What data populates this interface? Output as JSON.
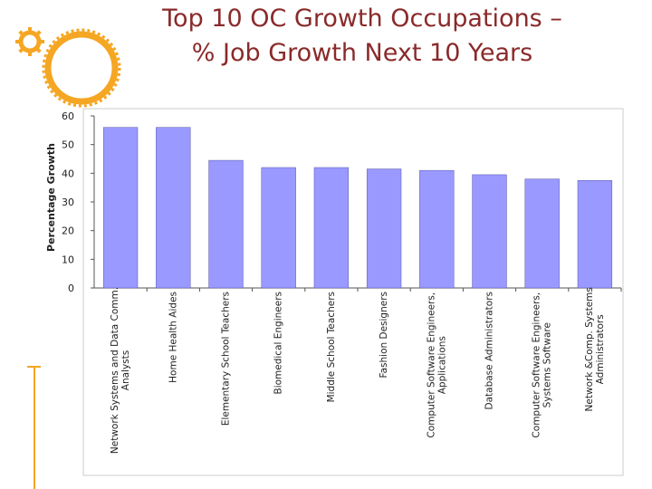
{
  "slide": {
    "title_line1": "Top 10 OC Growth Occupations –",
    "title_line2": "% Job Growth Next 10 Years",
    "accent_color": "#f5a623",
    "title_color": "#8a2a2a"
  },
  "chart_data": {
    "type": "bar",
    "ylabel": "Percentage Growth",
    "xlabel": "",
    "ylim": [
      0,
      60
    ],
    "yticks": [
      0,
      10,
      20,
      30,
      40,
      50,
      60
    ],
    "grid": false,
    "bar_color": "#9999ff",
    "categories": [
      [
        "Network Systems and Data Comm.",
        "Analysts"
      ],
      [
        "Home Health Aides"
      ],
      [
        "Elementary School Teachers"
      ],
      [
        "Biomedical Engineers"
      ],
      [
        "Middle School Teachers"
      ],
      [
        "Fashion Designers"
      ],
      [
        "Computer Software Engineers,",
        "Applications"
      ],
      [
        "Database Administrators"
      ],
      [
        "Computer Software Engineers,",
        "Systems Software"
      ],
      [
        "Network &Comp. Systems",
        "Administrators"
      ]
    ],
    "values": [
      56,
      56,
      44.5,
      42,
      42,
      41.5,
      41,
      39.5,
      38,
      37.5
    ]
  }
}
